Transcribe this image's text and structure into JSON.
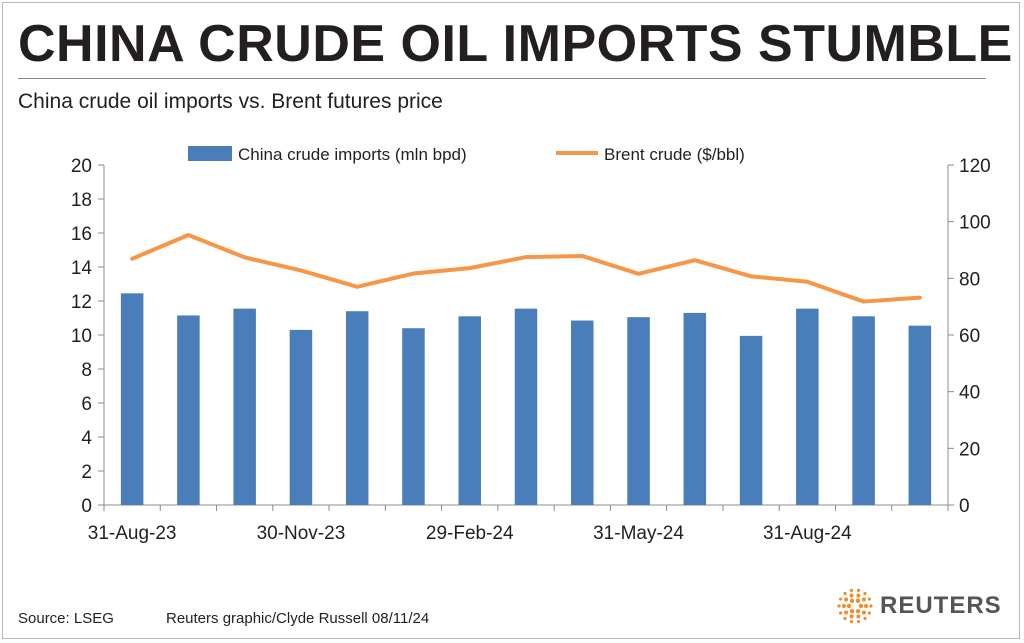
{
  "header": {
    "title": "CHINA CRUDE OIL IMPORTS STUMBLE",
    "subtitle": "China crude oil imports vs. Brent futures price"
  },
  "footer": {
    "source": "Source: LSEG",
    "credit": "Reuters graphic/Clyde Russell 08/11/24",
    "logo_text": "REUTERS"
  },
  "colors": {
    "bars": "#4a7ebb",
    "line": "#f79646",
    "axis": "#8c8c8c",
    "logo": "#f28c28"
  },
  "chart_data": {
    "type": "bar",
    "categories": [
      "Aug-23",
      "Sep-23",
      "Oct-23",
      "Nov-23",
      "Dec-23",
      "Jan-24",
      "Feb-24",
      "Mar-24",
      "Apr-24",
      "May-24",
      "Jun-24",
      "Jul-24",
      "Aug-24",
      "Sep-24",
      "Oct-24"
    ],
    "x_tick_labels": [
      "31-Aug-23",
      "30-Nov-23",
      "29-Feb-24",
      "31-May-24",
      "31-Aug-24"
    ],
    "x_tick_category_index": [
      0,
      3,
      6,
      9,
      12
    ],
    "series": [
      {
        "name": "China crude imports (mln bpd)",
        "type": "bar",
        "axis": "left",
        "values": [
          12.45,
          11.15,
          11.55,
          10.3,
          11.4,
          10.4,
          11.1,
          11.55,
          10.85,
          11.05,
          11.3,
          9.95,
          11.55,
          11.1,
          10.55
        ]
      },
      {
        "name": "Brent crude ($/bbl)",
        "type": "line",
        "axis": "right",
        "values": [
          86.9,
          95.3,
          87.4,
          82.8,
          77.0,
          81.7,
          83.6,
          87.5,
          87.9,
          81.6,
          86.4,
          80.7,
          78.8,
          71.8,
          73.2
        ]
      }
    ],
    "y_left": {
      "lim": [
        0,
        20
      ],
      "ticks": [
        "0",
        "2",
        "4",
        "6",
        "8",
        "10",
        "12",
        "14",
        "16",
        "18",
        "20"
      ]
    },
    "y_right": {
      "lim": [
        0,
        120
      ],
      "ticks": [
        "0",
        "20",
        "40",
        "60",
        "80",
        "100",
        "120"
      ]
    },
    "legend_position": "top",
    "grid": false
  }
}
